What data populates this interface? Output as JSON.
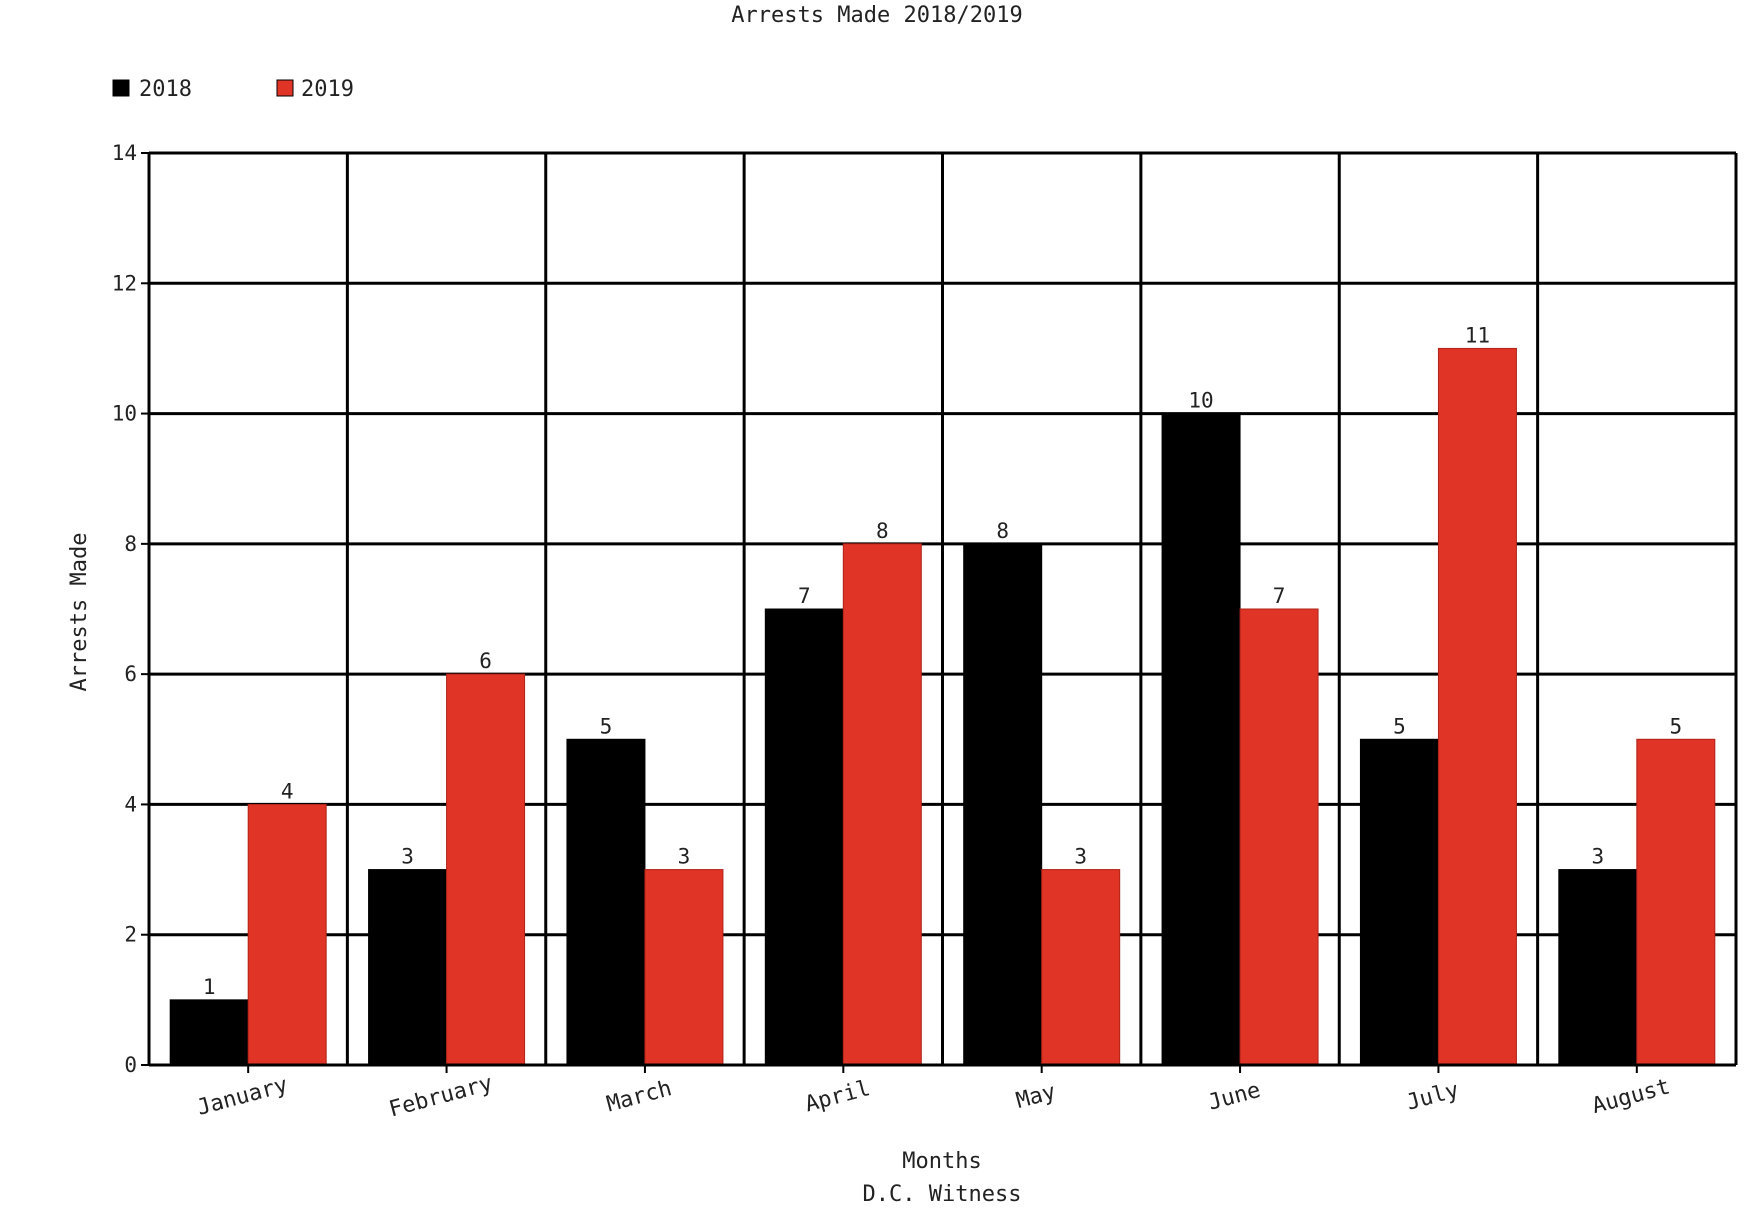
{
  "chart_data": {
    "type": "bar",
    "title": "Arrests Made 2018/2019",
    "xlabel": "Months",
    "ylabel": "Arrests Made",
    "footer": "D.C. Witness",
    "categories": [
      "January",
      "February",
      "March",
      "April",
      "May",
      "June",
      "July",
      "August"
    ],
    "series": [
      {
        "name": "2018",
        "color": "#000000",
        "values": [
          1,
          3,
          5,
          7,
          8,
          10,
          5,
          3
        ]
      },
      {
        "name": "2019",
        "color": "#e03426",
        "values": [
          4,
          6,
          3,
          8,
          3,
          7,
          11,
          5
        ]
      }
    ],
    "ylim": [
      0,
      14
    ],
    "yticks": [
      "0",
      "2",
      "4",
      "6",
      "8",
      "10",
      "12",
      "14"
    ],
    "grid": true,
    "legend_position": "top-left",
    "data_labels": true
  }
}
